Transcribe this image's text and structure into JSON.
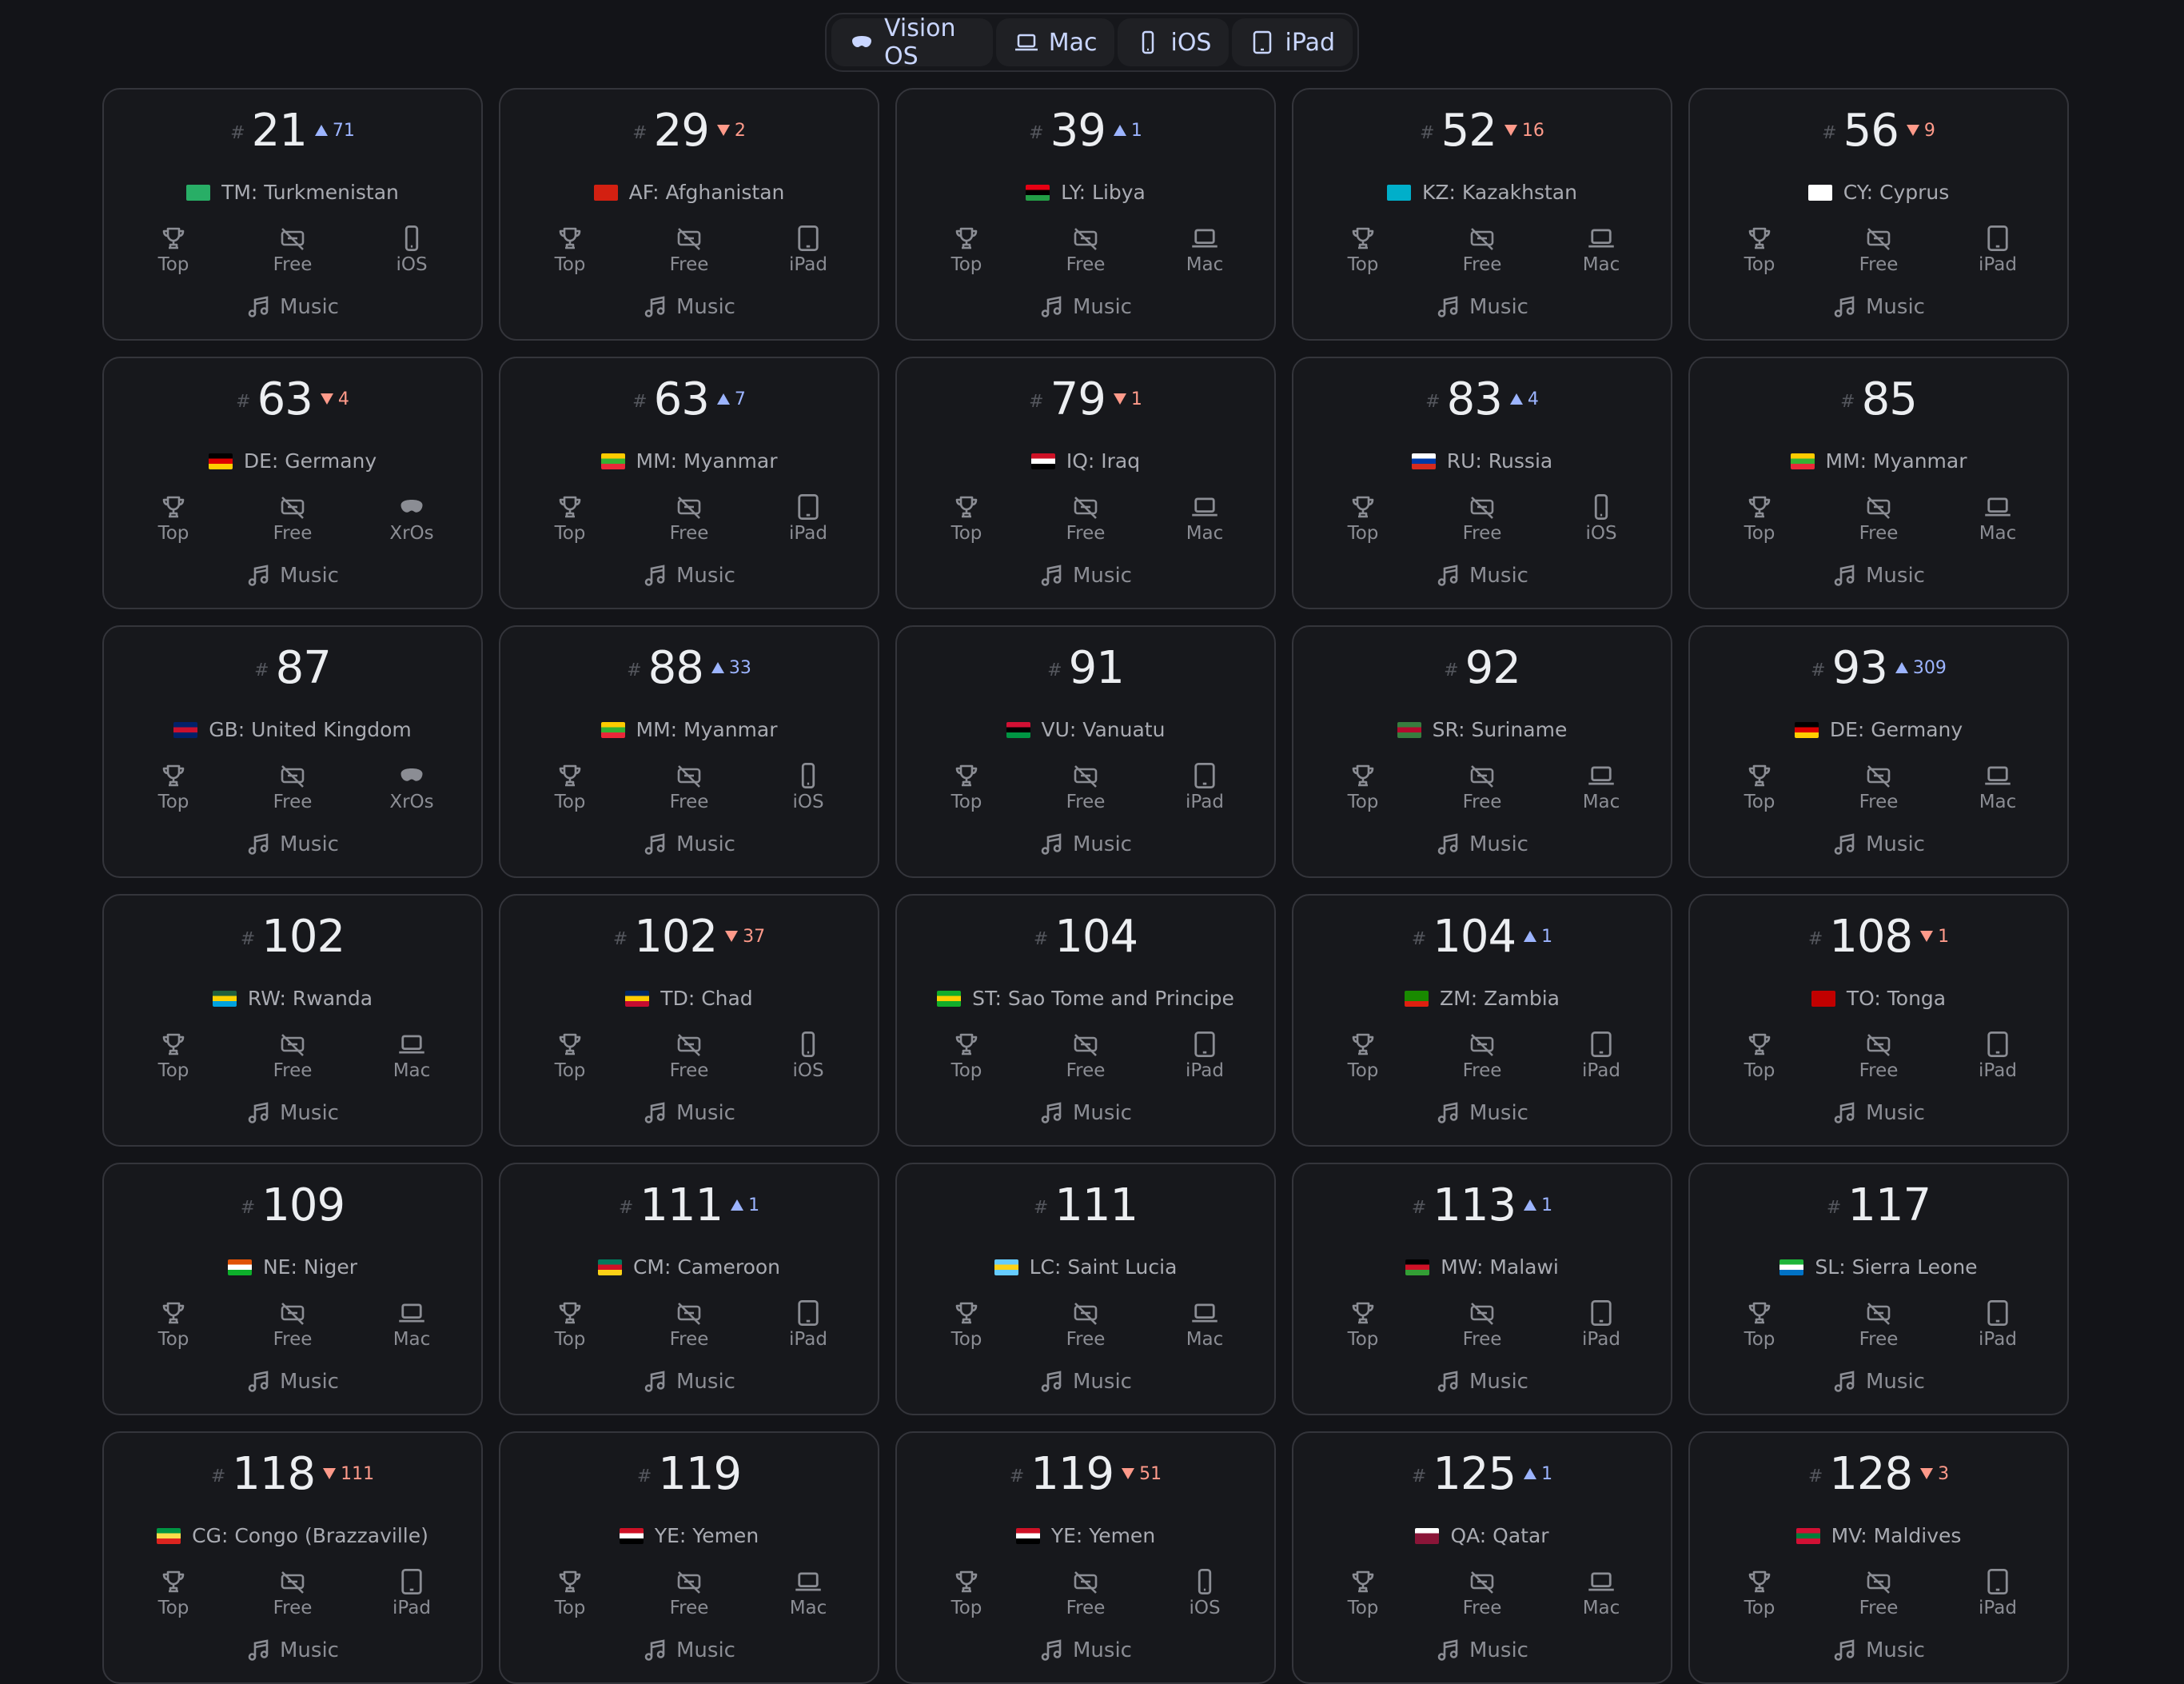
{
  "tabs": [
    {
      "label": "Vision OS",
      "icon": "vision-pro-icon"
    },
    {
      "label": "Mac",
      "icon": "laptop-icon"
    },
    {
      "label": "iOS",
      "icon": "phone-icon"
    },
    {
      "label": "iPad",
      "icon": "tablet-icon"
    }
  ],
  "labels": {
    "hash": "#",
    "top": "Top",
    "free": "Free",
    "genre": "Music"
  },
  "cards": [
    {
      "rank": "21",
      "delta": "71",
      "dir": "up",
      "country": "TM: Turkmenistan",
      "flag": [
        "#28ae66",
        "#28ae66",
        "#28ae66"
      ],
      "platform": "iOS"
    },
    {
      "rank": "29",
      "delta": "2",
      "dir": "down",
      "country": "AF: Afghanistan",
      "flag": [
        "#d32011",
        "#d32011",
        "#d32011"
      ],
      "platform": "iPad"
    },
    {
      "rank": "39",
      "delta": "1",
      "dir": "up",
      "country": "LY: Libya",
      "flag": [
        "#e70013",
        "#000000",
        "#239e46"
      ],
      "platform": "Mac"
    },
    {
      "rank": "52",
      "delta": "16",
      "dir": "down",
      "country": "KZ: Kazakhstan",
      "flag": [
        "#00afca",
        "#00afca",
        "#00afca"
      ],
      "platform": "Mac"
    },
    {
      "rank": "56",
      "delta": "9",
      "dir": "down",
      "country": "CY: Cyprus",
      "flag": [
        "#ffffff",
        "#ffffff",
        "#ffffff"
      ],
      "platform": "iPad"
    },
    {
      "rank": "63",
      "delta": "4",
      "dir": "down",
      "country": "DE: Germany",
      "flag": [
        "#000000",
        "#dd0000",
        "#ffce00"
      ],
      "platform": "XrOs"
    },
    {
      "rank": "63",
      "delta": "7",
      "dir": "up",
      "country": "MM: Myanmar",
      "flag": [
        "#fecb00",
        "#34b233",
        "#ea2839"
      ],
      "platform": "iPad"
    },
    {
      "rank": "79",
      "delta": "1",
      "dir": "down",
      "country": "IQ: Iraq",
      "flag": [
        "#ce1126",
        "#ffffff",
        "#000000"
      ],
      "platform": "Mac"
    },
    {
      "rank": "83",
      "delta": "4",
      "dir": "up",
      "country": "RU: Russia",
      "flag": [
        "#ffffff",
        "#0039a6",
        "#d52b1e"
      ],
      "platform": "iOS"
    },
    {
      "rank": "85",
      "delta": "",
      "dir": "",
      "country": "MM: Myanmar",
      "flag": [
        "#fecb00",
        "#34b233",
        "#ea2839"
      ],
      "platform": "Mac"
    },
    {
      "rank": "87",
      "delta": "",
      "dir": "",
      "country": "GB: United Kingdom",
      "flag": [
        "#012169",
        "#c8102e",
        "#012169"
      ],
      "platform": "XrOs"
    },
    {
      "rank": "88",
      "delta": "33",
      "dir": "up",
      "country": "MM: Myanmar",
      "flag": [
        "#fecb00",
        "#34b233",
        "#ea2839"
      ],
      "platform": "iOS"
    },
    {
      "rank": "91",
      "delta": "",
      "dir": "",
      "country": "VU: Vanuatu",
      "flag": [
        "#d21034",
        "#000000",
        "#009543"
      ],
      "platform": "iPad"
    },
    {
      "rank": "92",
      "delta": "",
      "dir": "",
      "country": "SR: Suriname",
      "flag": [
        "#377e3f",
        "#b40a2d",
        "#377e3f"
      ],
      "platform": "Mac"
    },
    {
      "rank": "93",
      "delta": "309",
      "dir": "up",
      "country": "DE: Germany",
      "flag": [
        "#000000",
        "#dd0000",
        "#ffce00"
      ],
      "platform": "Mac"
    },
    {
      "rank": "102",
      "delta": "",
      "dir": "",
      "country": "RW: Rwanda",
      "flag": [
        "#20603d",
        "#fad201",
        "#00a1de"
      ],
      "platform": "Mac"
    },
    {
      "rank": "102",
      "delta": "37",
      "dir": "down",
      "country": "TD: Chad",
      "flag": [
        "#002664",
        "#fecb00",
        "#c60c30"
      ],
      "platform": "iOS"
    },
    {
      "rank": "104",
      "delta": "",
      "dir": "",
      "country": "ST: Sao Tome and Principe",
      "flag": [
        "#12ad2b",
        "#ffce00",
        "#12ad2b"
      ],
      "platform": "iPad"
    },
    {
      "rank": "104",
      "delta": "1",
      "dir": "up",
      "country": "ZM: Zambia",
      "flag": [
        "#198a00",
        "#198a00",
        "#de2010"
      ],
      "platform": "iPad"
    },
    {
      "rank": "108",
      "delta": "1",
      "dir": "down",
      "country": "TO: Tonga",
      "flag": [
        "#c10000",
        "#c10000",
        "#c10000"
      ],
      "platform": "iPad"
    },
    {
      "rank": "109",
      "delta": "",
      "dir": "",
      "country": "NE: Niger",
      "flag": [
        "#e05206",
        "#ffffff",
        "#0db02b"
      ],
      "platform": "Mac"
    },
    {
      "rank": "111",
      "delta": "1",
      "dir": "up",
      "country": "CM: Cameroon",
      "flag": [
        "#007a5e",
        "#ce1126",
        "#fcd116"
      ],
      "platform": "iPad"
    },
    {
      "rank": "111",
      "delta": "",
      "dir": "",
      "country": "LC: Saint Lucia",
      "flag": [
        "#66ccff",
        "#fcd116",
        "#66ccff"
      ],
      "platform": "Mac"
    },
    {
      "rank": "113",
      "delta": "1",
      "dir": "up",
      "country": "MW: Malawi",
      "flag": [
        "#000000",
        "#ce1126",
        "#339e35"
      ],
      "platform": "iPad"
    },
    {
      "rank": "117",
      "delta": "",
      "dir": "",
      "country": "SL: Sierra Leone",
      "flag": [
        "#1eb53a",
        "#ffffff",
        "#0072c6"
      ],
      "platform": "iPad"
    },
    {
      "rank": "118",
      "delta": "111",
      "dir": "down",
      "country": "CG: Congo (Brazzaville)",
      "flag": [
        "#009543",
        "#fbde4a",
        "#dc241f"
      ],
      "platform": "iPad"
    },
    {
      "rank": "119",
      "delta": "",
      "dir": "",
      "country": "YE: Yemen",
      "flag": [
        "#ce1126",
        "#ffffff",
        "#000000"
      ],
      "platform": "Mac"
    },
    {
      "rank": "119",
      "delta": "51",
      "dir": "down",
      "country": "YE: Yemen",
      "flag": [
        "#ce1126",
        "#ffffff",
        "#000000"
      ],
      "platform": "iOS"
    },
    {
      "rank": "125",
      "delta": "1",
      "dir": "up",
      "country": "QA: Qatar",
      "flag": [
        "#ffffff",
        "#8a1538",
        "#8a1538"
      ],
      "platform": "Mac"
    },
    {
      "rank": "128",
      "delta": "3",
      "dir": "down",
      "country": "MV: Maldives",
      "flag": [
        "#d21034",
        "#007e3a",
        "#d21034"
      ],
      "platform": "iPad"
    }
  ]
}
